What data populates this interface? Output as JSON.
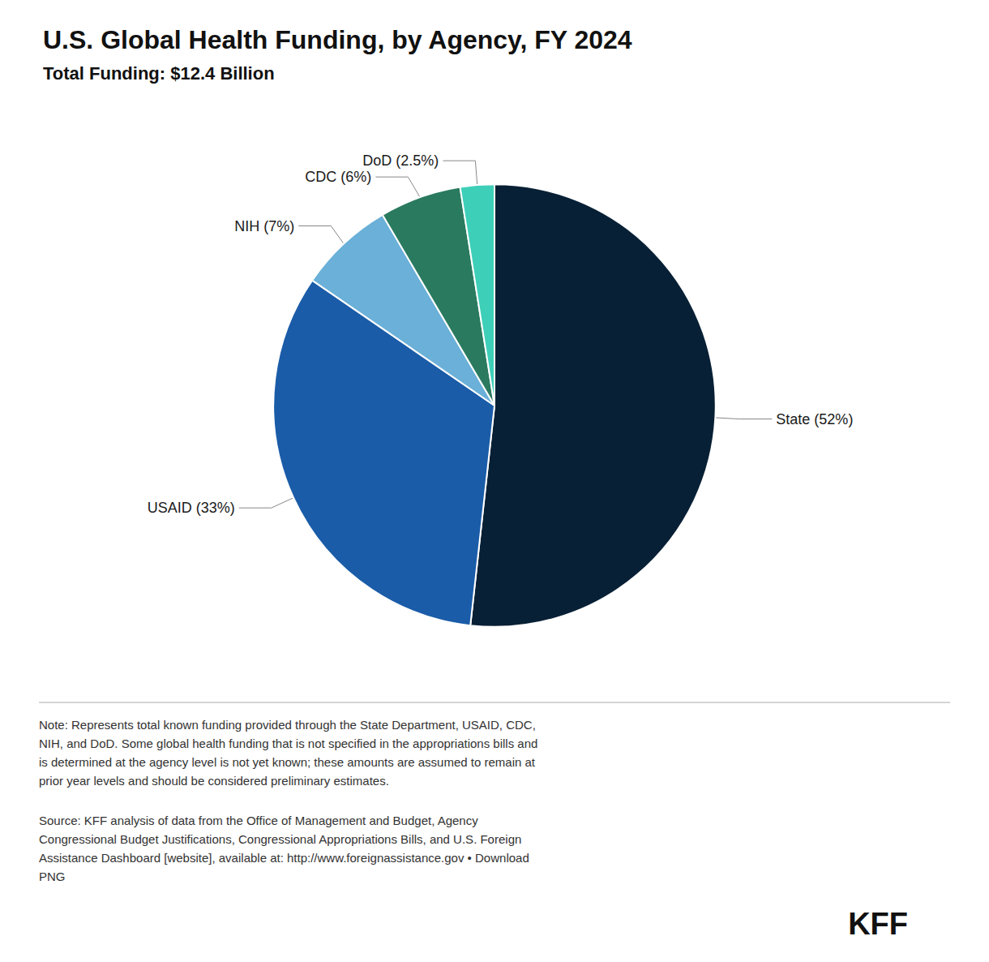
{
  "chart_data": {
    "type": "pie",
    "title": "U.S. Global Health Funding, by Agency, FY 2024",
    "subtitle": "Total Funding: $12.4 Billion",
    "categories": [
      "State",
      "USAID",
      "NIH",
      "CDC",
      "DoD"
    ],
    "values": [
      52.0,
      33.0,
      7.0,
      6.0,
      2.5
    ],
    "value_labels": [
      "State (52%)",
      "USAID (33%)",
      "NIH (7%)",
      "CDC (6%)",
      "DoD (2.5%)"
    ],
    "colors": [
      "#082035",
      "#1a5ca8",
      "#6ab0d8",
      "#2a7a60",
      "#3ecfb8"
    ],
    "data_labels": true,
    "annotations": [
      "Note: Represents total known funding provided through the State Department, USAID, CDC,\nNIH, and DoD. Some global health funding that is not specified in the appropriations bills and\nis determined at the agency level is not yet known; these amounts are assumed to remain at\nprior year levels and should be considered preliminary estimates.",
      "Source: KFF analysis of data from the Office of Management and Budget, Agency\nCongressional Budget Justifications, Congressional Appropriations Bills, and U.S. Foreign\nAssistance Dashboard [website], available at: http://www.foreignassistance.gov • Download\nPNG",
      "KFF"
    ]
  }
}
